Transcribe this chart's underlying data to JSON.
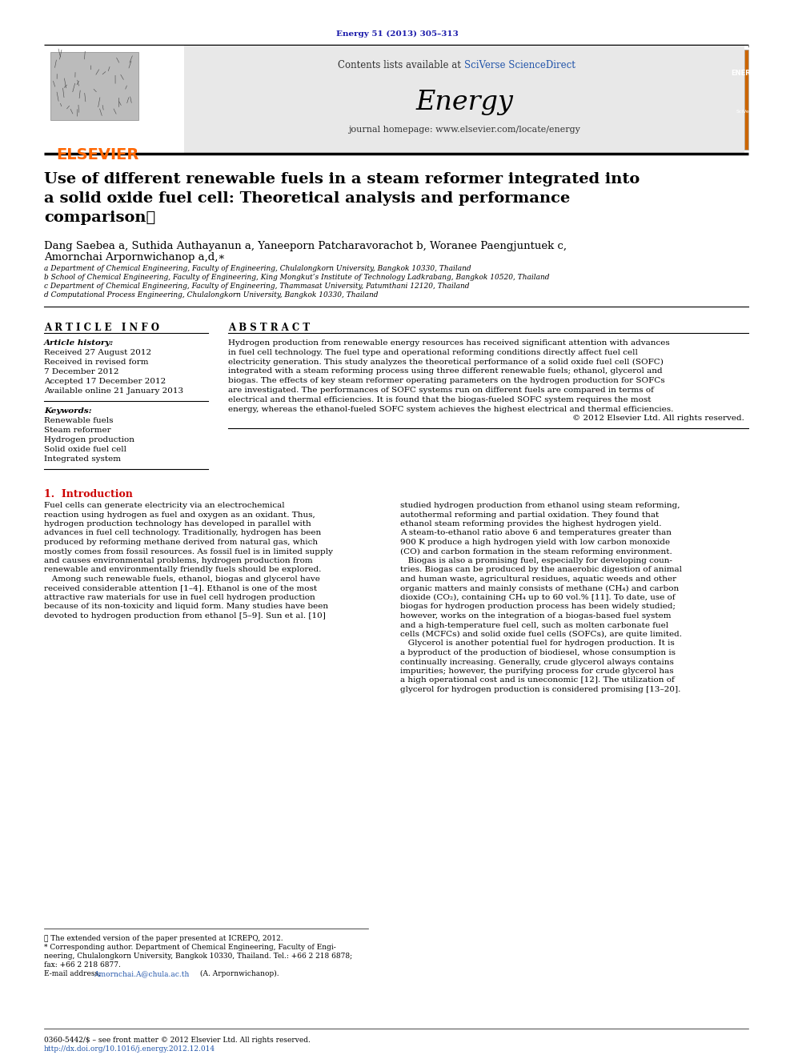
{
  "journal_ref": "Energy 51 (2013) 305–313",
  "journal_ref_color": "#1a1aaa",
  "sciverse_color": "#2255aa",
  "elsevier_color": "#FF6600",
  "header_bg": "#E8E8E8",
  "journal_name": "Energy",
  "journal_homepage": "journal homepage: www.elsevier.com/locate/energy",
  "contents_pre": "Contents lists available at ",
  "sciverse_text": "SciVerse ScienceDirect",
  "title_line1": "Use of different renewable fuels in a steam reformer integrated into",
  "title_line2": "a solid oxide fuel cell: Theoretical analysis and performance",
  "title_line3": "comparison⋆",
  "author_line1": "Dang Saebea a, Suthida Authayanun a, Yaneeporn Patcharavorachot b, Woranee Paengjuntuek c,",
  "author_line2": "Amornchai Arpornwichanop a,d,∗",
  "affil_a": "a Department of Chemical Engineering, Faculty of Engineering, Chulalongkorn University, Bangkok 10330, Thailand",
  "affil_b": "b School of Chemical Engineering, Faculty of Engineering, King Mongkut’s Institute of Technology Ladkrabang, Bangkok 10520, Thailand",
  "affil_c": "c Department of Chemical Engineering, Faculty of Engineering, Thammasat University, Patumthani 12120, Thailand",
  "affil_d": "d Computational Process Engineering, Chulalongkorn University, Bangkok 10330, Thailand",
  "article_info": "ARTICLE INFO",
  "abstract_title": "ABSTRACT",
  "history_label": "Article history:",
  "history_lines": [
    "Received 27 August 2012",
    "Received in revised form",
    "7 December 2012",
    "Accepted 17 December 2012",
    "Available online 21 January 2013"
  ],
  "keywords_label": "Keywords:",
  "keywords": [
    "Renewable fuels",
    "Steam reformer",
    "Hydrogen production",
    "Solid oxide fuel cell",
    "Integrated system"
  ],
  "abstract_lines": [
    "Hydrogen production from renewable energy resources has received significant attention with advances",
    "in fuel cell technology. The fuel type and operational reforming conditions directly affect fuel cell",
    "electricity generation. This study analyzes the theoretical performance of a solid oxide fuel cell (SOFC)",
    "integrated with a steam reforming process using three different renewable fuels; ethanol, glycerol and",
    "biogas. The effects of key steam reformer operating parameters on the hydrogen production for SOFCs",
    "are investigated. The performances of SOFC systems run on different fuels are compared in terms of",
    "electrical and thermal efficiencies. It is found that the biogas-fueled SOFC system requires the most",
    "energy, whereas the ethanol-fueled SOFC system achieves the highest electrical and thermal efficiencies.",
    "© 2012 Elsevier Ltd. All rights reserved."
  ],
  "section1": "1.  Introduction",
  "section1_color": "#CC0000",
  "intro_left": [
    "Fuel cells can generate electricity via an electrochemical",
    "reaction using hydrogen as fuel and oxygen as an oxidant. Thus,",
    "hydrogen production technology has developed in parallel with",
    "advances in fuel cell technology. Traditionally, hydrogen has been",
    "produced by reforming methane derived from natural gas, which",
    "mostly comes from fossil resources. As fossil fuel is in limited supply",
    "and causes environmental problems, hydrogen production from",
    "renewable and environmentally friendly fuels should be explored.",
    "   Among such renewable fuels, ethanol, biogas and glycerol have",
    "received considerable attention [1–4]. Ethanol is one of the most",
    "attractive raw materials for use in fuel cell hydrogen production",
    "because of its non-toxicity and liquid form. Many studies have been",
    "devoted to hydrogen production from ethanol [5–9]. Sun et al. [10]"
  ],
  "intro_right": [
    "studied hydrogen production from ethanol using steam reforming,",
    "autothermal reforming and partial oxidation. They found that",
    "ethanol steam reforming provides the highest hydrogen yield.",
    "A steam-to-ethanol ratio above 6 and temperatures greater than",
    "900 K produce a high hydrogen yield with low carbon monoxide",
    "(CO) and carbon formation in the steam reforming environment.",
    "   Biogas is also a promising fuel, especially for developing coun-",
    "tries. Biogas can be produced by the anaerobic digestion of animal",
    "and human waste, agricultural residues, aquatic weeds and other",
    "organic matters and mainly consists of methane (CH₄) and carbon",
    "dioxide (CO₂), containing CH₄ up to 60 vol.% [11]. To date, use of",
    "biogas for hydrogen production process has been widely studied;",
    "however, works on the integration of a biogas-based fuel system",
    "and a high-temperature fuel cell, such as molten carbonate fuel",
    "cells (MCFCs) and solid oxide fuel cells (SOFCs), are quite limited.",
    "   Glycerol is another potential fuel for hydrogen production. It is",
    "a byproduct of the production of biodiesel, whose consumption is",
    "continually increasing. Generally, crude glycerol always contains",
    "impurities; however, the purifying process for crude glycerol has",
    "a high operational cost and is uneconomic [12]. The utilization of",
    "glycerol for hydrogen production is considered promising [13–20]."
  ],
  "fn_star": "⋆ The extended version of the paper presented at ICREPQ, 2012.",
  "fn_corr": "* Corresponding author. Department of Chemical Engineering, Faculty of Engi-",
  "fn_corr2": "neering, Chulalongkorn University, Bangkok 10330, Thailand. Tel.: +66 2 218 6878;",
  "fn_fax": "fax: +66 2 218 6877.",
  "fn_email_pre": "E-mail address: ",
  "fn_email_link": "Amornchai.A@chula.ac.th",
  "fn_email_post": " (A. Arpornwichanop).",
  "fn_email_color": "#2255aa",
  "bottom_issn": "0360-5442/$ – see front matter © 2012 Elsevier Ltd. All rights reserved.",
  "bottom_doi": "http://dx.doi.org/10.1016/j.energy.2012.12.014",
  "bottom_doi_color": "#2255aa",
  "page_bg": "#FFFFFF"
}
